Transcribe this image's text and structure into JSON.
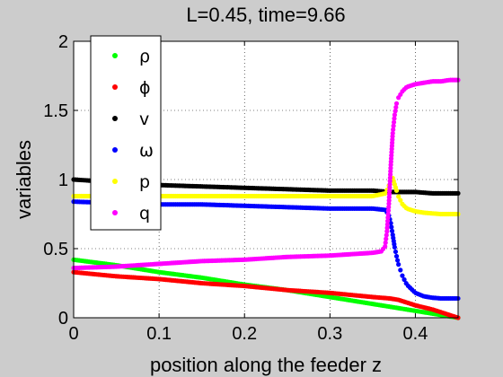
{
  "chart_data": {
    "type": "scatter",
    "title": "L=0.45, time=9.66",
    "xlabel": "position along the feeder z",
    "ylabel": "variables",
    "xlim": [
      0,
      0.45
    ],
    "ylim": [
      0,
      2
    ],
    "xticks": [
      "0",
      "0.1",
      "0.2",
      "0.3",
      "0.4"
    ],
    "xtick_values": [
      0,
      0.1,
      0.2,
      0.3,
      0.4
    ],
    "yticks": [
      "0",
      "0.5",
      "1",
      "1.5",
      "2"
    ],
    "ytick_values": [
      0,
      0.5,
      1,
      1.5,
      2
    ],
    "grid": true,
    "legend_position": "top-left",
    "series": [
      {
        "name": "ρ",
        "color": "#00ff00",
        "x": [
          0,
          0.05,
          0.1,
          0.15,
          0.2,
          0.25,
          0.3,
          0.35,
          0.37,
          0.38,
          0.4,
          0.42,
          0.45
        ],
        "y": [
          0.42,
          0.38,
          0.33,
          0.29,
          0.24,
          0.2,
          0.15,
          0.1,
          0.08,
          0.07,
          0.05,
          0.03,
          0.0
        ]
      },
      {
        "name": "ϕ",
        "color": "#ff0000",
        "x": [
          0,
          0.05,
          0.1,
          0.15,
          0.2,
          0.25,
          0.3,
          0.35,
          0.37,
          0.38,
          0.39,
          0.4,
          0.42,
          0.44,
          0.45
        ],
        "y": [
          0.33,
          0.3,
          0.28,
          0.25,
          0.23,
          0.2,
          0.18,
          0.15,
          0.14,
          0.13,
          0.11,
          0.09,
          0.06,
          0.02,
          0.0
        ]
      },
      {
        "name": "v",
        "color": "#000000",
        "x": [
          0,
          0.05,
          0.1,
          0.15,
          0.2,
          0.25,
          0.3,
          0.35,
          0.37,
          0.38,
          0.4,
          0.42,
          0.45
        ],
        "y": [
          1.0,
          0.98,
          0.96,
          0.95,
          0.94,
          0.93,
          0.92,
          0.92,
          0.91,
          0.91,
          0.91,
          0.9,
          0.9
        ]
      },
      {
        "name": "ω",
        "color": "#0000ff",
        "x": [
          0,
          0.05,
          0.1,
          0.15,
          0.2,
          0.25,
          0.3,
          0.35,
          0.365,
          0.37,
          0.373,
          0.376,
          0.38,
          0.385,
          0.39,
          0.4,
          0.41,
          0.42,
          0.43,
          0.44,
          0.45
        ],
        "y": [
          0.84,
          0.83,
          0.82,
          0.82,
          0.81,
          0.8,
          0.79,
          0.79,
          0.78,
          0.73,
          0.62,
          0.5,
          0.39,
          0.3,
          0.24,
          0.18,
          0.155,
          0.145,
          0.14,
          0.14,
          0.14
        ]
      },
      {
        "name": "p",
        "color": "#ffff00",
        "x": [
          0,
          0.05,
          0.1,
          0.15,
          0.2,
          0.25,
          0.3,
          0.35,
          0.365,
          0.37,
          0.373,
          0.376,
          0.38,
          0.385,
          0.39,
          0.4,
          0.41,
          0.42,
          0.43,
          0.44,
          0.45
        ],
        "y": [
          0.88,
          0.88,
          0.88,
          0.88,
          0.88,
          0.88,
          0.88,
          0.88,
          0.9,
          0.97,
          1.02,
          0.96,
          0.88,
          0.82,
          0.79,
          0.77,
          0.76,
          0.755,
          0.75,
          0.75,
          0.75
        ]
      },
      {
        "name": "q",
        "color": "#ff00ff",
        "x": [
          0,
          0.05,
          0.1,
          0.15,
          0.2,
          0.25,
          0.3,
          0.35,
          0.36,
          0.365,
          0.368,
          0.37,
          0.372,
          0.374,
          0.376,
          0.378,
          0.38,
          0.385,
          0.39,
          0.4,
          0.41,
          0.42,
          0.43,
          0.44,
          0.45
        ],
        "y": [
          0.36,
          0.37,
          0.39,
          0.41,
          0.42,
          0.44,
          0.45,
          0.47,
          0.48,
          0.52,
          0.7,
          0.95,
          1.2,
          1.38,
          1.48,
          1.55,
          1.59,
          1.64,
          1.67,
          1.69,
          1.7,
          1.71,
          1.71,
          1.72,
          1.72
        ]
      }
    ]
  }
}
